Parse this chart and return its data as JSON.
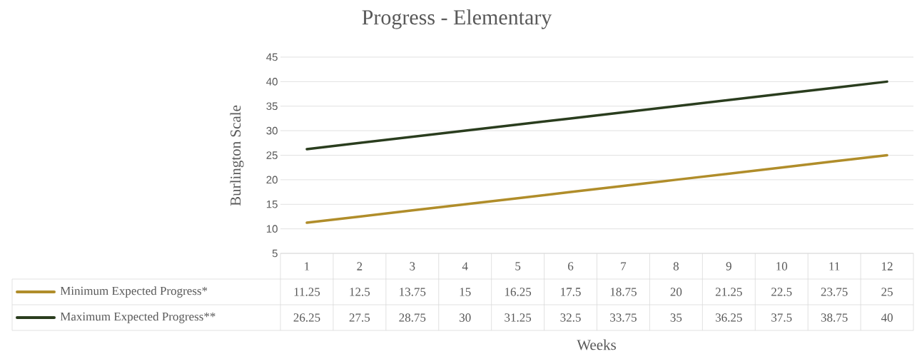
{
  "chart_data": {
    "type": "line",
    "title": "Progress - Elementary",
    "xlabel": "Weeks",
    "ylabel": "Burlington Scale",
    "categories": [
      "1",
      "2",
      "3",
      "4",
      "5",
      "6",
      "7",
      "8",
      "9",
      "10",
      "11",
      "12"
    ],
    "series": [
      {
        "name": "Minimum Expected Progress*",
        "color": "#b08d2a",
        "values": [
          11.25,
          12.5,
          13.75,
          15,
          16.25,
          17.5,
          18.75,
          20,
          21.25,
          22.5,
          23.75,
          25
        ]
      },
      {
        "name": "Maximum Expected Progress**",
        "color": "#2a3d1e",
        "values": [
          26.25,
          27.5,
          28.75,
          30,
          31.25,
          32.5,
          33.75,
          35,
          36.25,
          37.5,
          38.75,
          40
        ]
      }
    ],
    "ylim": [
      5,
      45
    ],
    "yticks": [
      5,
      10,
      15,
      20,
      25,
      30,
      35,
      40,
      45
    ],
    "grid": "y",
    "data_labels": true,
    "legend": "bottom left"
  }
}
